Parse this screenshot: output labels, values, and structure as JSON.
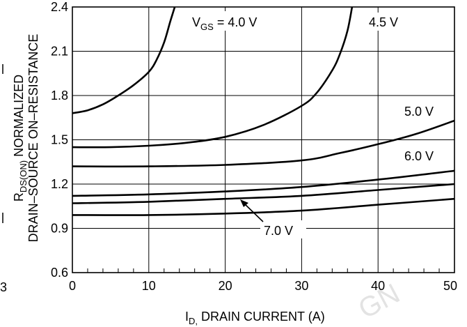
{
  "chart_data": {
    "type": "line",
    "title": "",
    "xlabel": "DRAIN CURRENT (A)",
    "xlabel_symbol": "I",
    "xlabel_sub": "D,",
    "ylabel_line1_symbol": "R",
    "ylabel_line1_sub": "DS(ON)",
    "ylabel_line1_rest": "NORMALIZED",
    "ylabel_line2": "DRAIN–SOURCE ON–RESISTANCE",
    "xlim": [
      0,
      50
    ],
    "ylim": [
      0.6,
      2.4
    ],
    "x_ticks": [
      "0",
      "10",
      "20",
      "30",
      "40",
      "50"
    ],
    "y_ticks": [
      "0.6",
      "0.9",
      "1.2",
      "1.5",
      "1.8",
      "2.1",
      "2.4"
    ],
    "grid": true,
    "legend": "none",
    "series": [
      {
        "name": "V_GS = 4.0 V",
        "x": [
          0,
          2,
          4,
          6,
          8,
          10,
          11,
          12,
          12.8,
          13.4
        ],
        "y": [
          1.68,
          1.7,
          1.74,
          1.8,
          1.87,
          1.96,
          2.04,
          2.16,
          2.3,
          2.4
        ]
      },
      {
        "name": "4.5 V",
        "x": [
          0,
          5,
          10,
          15,
          20,
          25,
          30,
          32,
          34,
          35,
          36,
          36.6
        ],
        "y": [
          1.45,
          1.45,
          1.46,
          1.48,
          1.52,
          1.6,
          1.73,
          1.82,
          1.97,
          2.08,
          2.24,
          2.4
        ]
      },
      {
        "name": "5.0 V",
        "x": [
          0,
          10,
          20,
          30,
          35,
          40,
          45,
          50
        ],
        "y": [
          1.32,
          1.32,
          1.33,
          1.36,
          1.41,
          1.47,
          1.54,
          1.63
        ]
      },
      {
        "name": "6.0 V",
        "x": [
          0,
          10,
          20,
          30,
          40,
          50
        ],
        "y": [
          1.12,
          1.13,
          1.15,
          1.18,
          1.23,
          1.29
        ]
      },
      {
        "name": "",
        "x": [
          0,
          10,
          20,
          30,
          40,
          50
        ],
        "y": [
          1.07,
          1.08,
          1.1,
          1.12,
          1.16,
          1.2
        ]
      },
      {
        "name": "7.0 V",
        "x": [
          0,
          10,
          20,
          30,
          40,
          50
        ],
        "y": [
          0.99,
          0.99,
          1.0,
          1.02,
          1.06,
          1.1
        ]
      }
    ],
    "labels": {
      "vgs4_symbol": "V",
      "vgs4_sub": "GS",
      "vgs4_rest": " = 4.0 V",
      "v45": "4.5 V",
      "v50": "5.0 V",
      "v60": "6.0 V",
      "v70": "7.0 V"
    },
    "edge_fragments": {
      "left_tick": "3"
    },
    "watermark": "GN"
  },
  "colors": {
    "curve": "#000000",
    "grid": "#000000",
    "watermark": "#e3e3e3"
  }
}
